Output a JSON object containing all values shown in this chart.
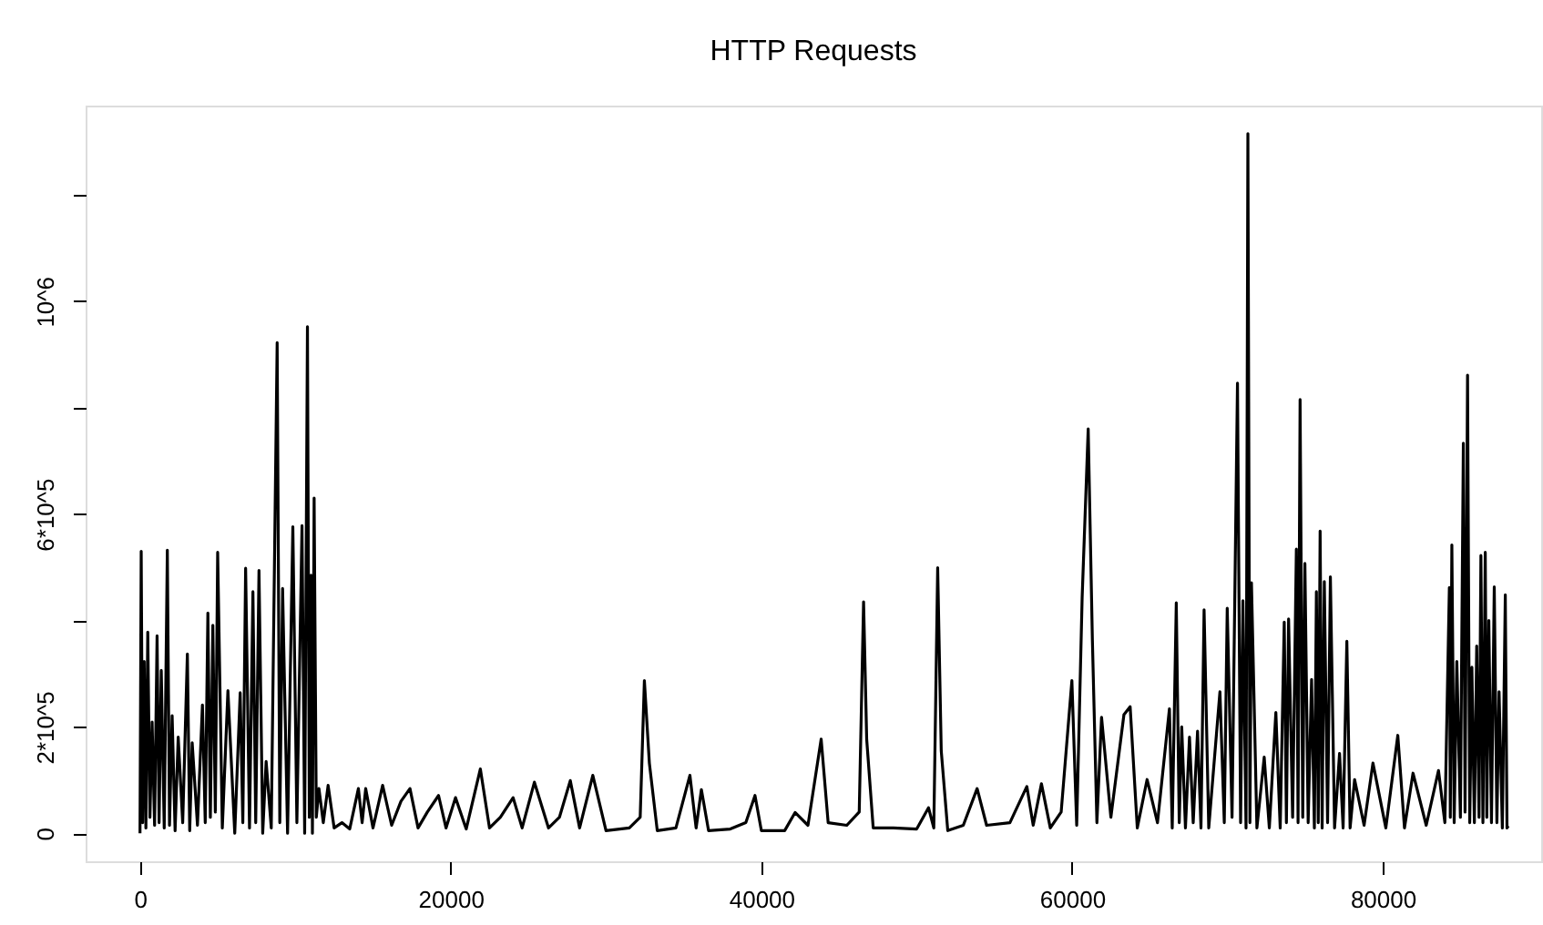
{
  "chart_data": {
    "type": "line",
    "title": "HTTP Requests",
    "color": "#000000",
    "xlim": [
      -3500,
      90200
    ],
    "ylim": [
      -52600,
      1367600
    ],
    "xticks": [
      0,
      20000,
      40000,
      60000,
      80000
    ],
    "yticks": [
      0,
      {
        "value": 200000,
        "label": "2*10^5"
      },
      {
        "value": 400000,
        "label": null
      },
      {
        "value": 600000,
        "label": "6*10^5"
      },
      {
        "value": 800000,
        "label": null
      },
      {
        "value": 1000000,
        "label": "10^6"
      },
      {
        "value": 1200000,
        "label": null
      }
    ],
    "x": [
      0,
      78,
      170,
      270,
      380,
      500,
      640,
      780,
      940,
      1100,
      1230,
      1370,
      1560,
      1760,
      1900,
      2070,
      2260,
      2460,
      2750,
      3050,
      3200,
      3360,
      3700,
      4020,
      4200,
      4370,
      4530,
      4690,
      4850,
      5000,
      5300,
      5660,
      6100,
      6450,
      6620,
      6800,
      7050,
      7270,
      7450,
      7660,
      7900,
      8120,
      8450,
      8830,
      9000,
      9180,
      9500,
      9840,
      10100,
      10430,
      10600,
      10780,
      10900,
      11010,
      11100,
      11210,
      11350,
      11520,
      11800,
      12110,
      12500,
      13000,
      13500,
      14060,
      14300,
      14530,
      15000,
      15620,
      16200,
      16800,
      17380,
      17900,
      18500,
      19220,
      19700,
      20310,
      21000,
      21910,
      22500,
      23200,
      24020,
      24600,
      25390,
      26300,
      27000,
      27700,
      28300,
      29150,
      30000,
      31500,
      32200,
      32470,
      32790,
      33300,
      34500,
      35400,
      35800,
      36140,
      36600,
      38000,
      39000,
      39590,
      40000,
      41500,
      42170,
      43000,
      43850,
      44300,
      45500,
      46300,
      46580,
      46780,
      47200,
      48500,
      50000,
      50760,
      51100,
      51350,
      51580,
      52000,
      53000,
      53890,
      54500,
      56000,
      57090,
      57500,
      58030,
      58600,
      59300,
      59990,
      60300,
      60650,
      61040,
      61310,
      61600,
      61900,
      62500,
      63340,
      63740,
      64200,
      64830,
      65500,
      66270,
      66450,
      66710,
      66900,
      67060,
      67300,
      67560,
      67800,
      68080,
      68300,
      68500,
      68800,
      69520,
      69800,
      69990,
      70300,
      70650,
      70850,
      71000,
      71200,
      71320,
      71450,
      71550,
      71900,
      72370,
      72700,
      73120,
      73400,
      73660,
      73800,
      73940,
      74200,
      74440,
      74550,
      74680,
      74850,
      74990,
      75200,
      75420,
      75600,
      75730,
      75850,
      75970,
      76100,
      76240,
      76450,
      76630,
      76900,
      77220,
      77450,
      77690,
      77900,
      78190,
      78800,
      79370,
      80200,
      80970,
      81400,
      81950,
      82800,
      83590,
      84000,
      84290,
      84350,
      84450,
      84600,
      84770,
      85000,
      85190,
      85300,
      85460,
      85600,
      85740,
      85900,
      86050,
      86200,
      86320,
      86450,
      86600,
      86700,
      86830,
      87000,
      87180,
      87350,
      87490,
      87700,
      87890,
      88000,
      88080
    ],
    "values": [
      0,
      530000,
      20000,
      323000,
      10000,
      378000,
      30000,
      209000,
      15000,
      371000,
      20000,
      306000,
      10000,
      532000,
      15000,
      221000,
      5000,
      181000,
      20000,
      337000,
      5000,
      170000,
      15000,
      241000,
      20000,
      414000,
      30000,
      391000,
      40000,
      528000,
      10000,
      268000,
      0,
      264000,
      20000,
      498000,
      10000,
      454000,
      20000,
      494000,
      0,
      135000,
      10000,
      922000,
      20000,
      460000,
      0,
      576000,
      20000,
      578000,
      0,
      952000,
      30000,
      485000,
      0,
      630000,
      30000,
      84000,
      20000,
      90000,
      10000,
      20000,
      8000,
      84000,
      20000,
      84000,
      10000,
      90000,
      15000,
      60000,
      84000,
      10000,
      40000,
      71000,
      10000,
      67000,
      8000,
      121000,
      10000,
      30000,
      67000,
      10000,
      96000,
      10000,
      30000,
      99000,
      10000,
      109000,
      5000,
      10000,
      30000,
      287000,
      132000,
      5000,
      10000,
      109000,
      10000,
      82000,
      5000,
      8000,
      20000,
      71000,
      5000,
      5000,
      39000,
      15000,
      177000,
      20000,
      15000,
      40000,
      435000,
      177000,
      10000,
      10000,
      8000,
      48000,
      10000,
      499000,
      155000,
      5000,
      15000,
      84000,
      15000,
      20000,
      88000,
      15000,
      93000,
      10000,
      40000,
      287000,
      15000,
      443000,
      760000,
      363000,
      20000,
      218000,
      30000,
      223000,
      238000,
      10000,
      101000,
      20000,
      234000,
      10000,
      433000,
      20000,
      200000,
      10000,
      181000,
      20000,
      192000,
      10000,
      420000,
      10000,
      266000,
      20000,
      423000,
      30000,
      846000,
      20000,
      437000,
      10000,
      1315000,
      20000,
      471000,
      10000,
      143000,
      10000,
      227000,
      10000,
      397000,
      20000,
      403000,
      30000,
      534000,
      20000,
      815000,
      30000,
      507000,
      20000,
      289000,
      10000,
      454000,
      20000,
      568000,
      10000,
      473000,
      20000,
      482000,
      10000,
      150000,
      10000,
      361000,
      10000,
      101000,
      15000,
      132000,
      10000,
      184000,
      10000,
      113000,
      15000,
      118000,
      20000,
      462000,
      30000,
      542000,
      20000,
      323000,
      30000,
      733000,
      40000,
      861000,
      20000,
      312000,
      20000,
      352000,
      30000,
      522000,
      20000,
      528000,
      30000,
      400000,
      20000,
      463000,
      20000,
      266000,
      10000,
      448000,
      10000,
      14000
    ]
  }
}
